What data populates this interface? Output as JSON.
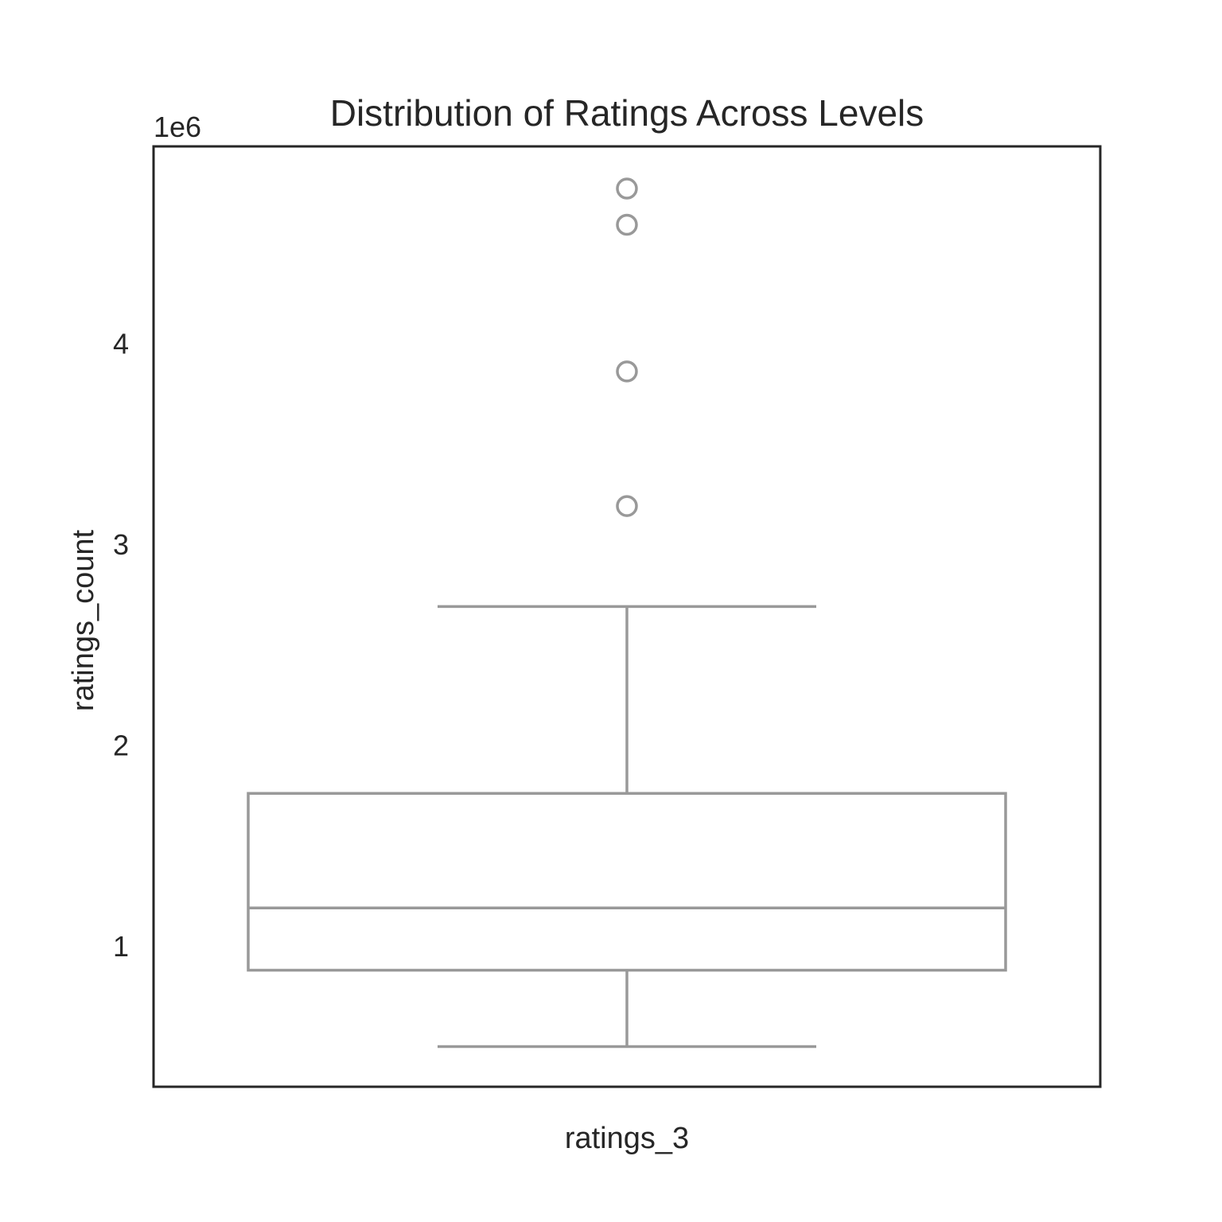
{
  "chart_data": {
    "type": "box",
    "title": "Distribution of Ratings Across Levels",
    "xlabel": "ratings_3",
    "ylabel": "ratings_count",
    "offset_label": "1e6",
    "categories": [
      "ratings_3"
    ],
    "ylim": [
      300000,
      4980000
    ],
    "yticks": [
      1,
      2,
      3,
      4
    ],
    "ytick_labels": [
      "1",
      "2",
      "3",
      "4"
    ],
    "y_multiplier": 1000000,
    "box": {
      "whisker_low": 500000,
      "q1": 880000,
      "median": 1190000,
      "q3": 1760000,
      "whisker_high": 2690000
    },
    "outliers": [
      3190000,
      3860000,
      4590000,
      4770000
    ],
    "grid": false,
    "legend": "none",
    "colors": {
      "box": "#999999",
      "frame": "#262626",
      "text": "#262626"
    }
  }
}
